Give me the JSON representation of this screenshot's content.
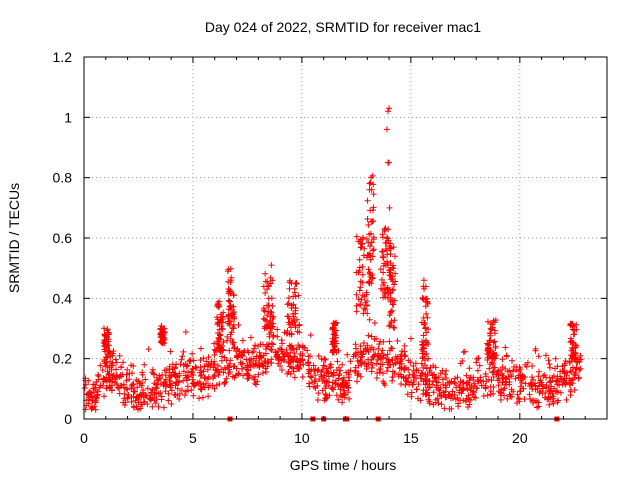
{
  "chart_data": {
    "type": "scatter",
    "title": "Day 024 of 2022, SRMTID for receiver mac1",
    "xlabel": "GPS time / hours",
    "ylabel": "SRMTID / TECUs",
    "xlim": [
      0,
      24
    ],
    "ylim": [
      0,
      1.2
    ],
    "xticks": [
      0,
      5,
      10,
      15,
      20
    ],
    "xtick_labels": [
      "0",
      "5",
      "10",
      "15",
      "20"
    ],
    "yticks": [
      0,
      0.2,
      0.4,
      0.6,
      0.8,
      1.0,
      1.2
    ],
    "ytick_labels": [
      "0",
      "0.2",
      "0.4",
      "0.6",
      "0.8",
      "1",
      "1.2"
    ],
    "grid": true,
    "marker": "plus",
    "series": [
      {
        "name": "SRMTID",
        "color": "#ff0000",
        "base_profile": {
          "x": [
            0.0,
            0.5,
            1.0,
            1.5,
            2.0,
            2.5,
            3.0,
            3.5,
            4.0,
            4.5,
            5.0,
            5.5,
            6.0,
            6.5,
            7.0,
            7.5,
            8.0,
            8.5,
            9.0,
            9.5,
            10.0,
            10.5,
            11.0,
            11.5,
            12.0,
            12.5,
            13.0,
            13.5,
            14.0,
            14.5,
            15.0,
            15.5,
            16.0,
            16.5,
            17.0,
            17.5,
            18.0,
            18.5,
            19.0,
            19.5,
            20.0,
            20.5,
            21.0,
            21.5,
            22.0,
            22.5,
            22.8
          ],
          "y": [
            0.07,
            0.08,
            0.14,
            0.15,
            0.09,
            0.08,
            0.09,
            0.1,
            0.12,
            0.13,
            0.14,
            0.13,
            0.16,
            0.18,
            0.2,
            0.17,
            0.18,
            0.22,
            0.24,
            0.2,
            0.19,
            0.15,
            0.13,
            0.12,
            0.11,
            0.18,
            0.22,
            0.2,
            0.18,
            0.17,
            0.14,
            0.13,
            0.11,
            0.09,
            0.08,
            0.1,
            0.12,
            0.14,
            0.14,
            0.13,
            0.12,
            0.11,
            0.1,
            0.11,
            0.12,
            0.15,
            0.16
          ]
        },
        "spread": 0.05,
        "point_density_per_hour": 60,
        "clusters": [
          {
            "x": [
              0.9,
              1.2
            ],
            "y": [
              0.18,
              0.31
            ]
          },
          {
            "x": [
              3.5,
              3.7
            ],
            "y": [
              0.25,
              0.31
            ]
          },
          {
            "x": [
              6.1,
              6.4
            ],
            "y": [
              0.22,
              0.39
            ]
          },
          {
            "x": [
              6.6,
              6.9
            ],
            "y": [
              0.3,
              0.5
            ]
          },
          {
            "x": [
              8.2,
              8.7
            ],
            "y": [
              0.3,
              0.51
            ]
          },
          {
            "x": [
              9.3,
              9.9
            ],
            "y": [
              0.28,
              0.46
            ]
          },
          {
            "x": [
              11.4,
              11.6
            ],
            "y": [
              0.22,
              0.33
            ]
          },
          {
            "x": [
              12.5,
              13.0
            ],
            "y": [
              0.35,
              0.62
            ]
          },
          {
            "x": [
              13.0,
              13.3
            ],
            "y": [
              0.45,
              0.81
            ]
          },
          {
            "x": [
              13.6,
              14.0
            ],
            "y": [
              0.4,
              0.64
            ]
          },
          {
            "x": [
              14.0,
              14.3
            ],
            "y": [
              0.3,
              0.6
            ]
          },
          {
            "x": [
              15.5,
              15.8
            ],
            "y": [
              0.2,
              0.46
            ]
          },
          {
            "x": [
              18.5,
              18.9
            ],
            "y": [
              0.2,
              0.33
            ]
          },
          {
            "x": [
              22.3,
              22.6
            ],
            "y": [
              0.2,
              0.32
            ]
          }
        ],
        "notable_points": [
          {
            "x": 13.1,
            "y": 0.76
          },
          {
            "x": 13.2,
            "y": 0.76
          },
          {
            "x": 13.95,
            "y": 0.85
          },
          {
            "x": 14.0,
            "y": 0.85
          },
          {
            "x": 14.02,
            "y": 0.7
          },
          {
            "x": 13.9,
            "y": 0.96
          },
          {
            "x": 13.95,
            "y": 1.02
          },
          {
            "x": 14.0,
            "y": 1.03
          },
          {
            "x": 6.6,
            "y": 0.49
          },
          {
            "x": 8.6,
            "y": 0.51
          },
          {
            "x": 6.2,
            "y": 0.39
          },
          {
            "x": 15.6,
            "y": 0.46
          }
        ],
        "zero_markers_x": [
          6.7,
          10.5,
          11.0,
          12.0,
          12.05,
          13.5,
          21.7
        ]
      }
    ]
  }
}
